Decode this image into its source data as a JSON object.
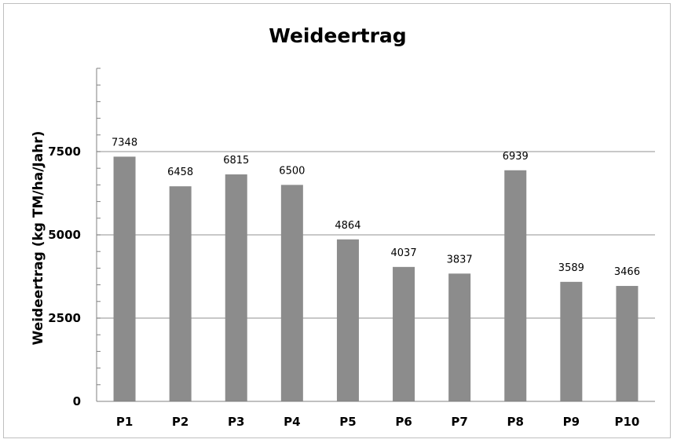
{
  "chart_data": {
    "type": "bar",
    "title": "Weideertrag",
    "xlabel": "",
    "ylabel": "Weideertrag  (kg TM/ha/Jahr)",
    "categories": [
      "P1",
      "P2",
      "P3",
      "P4",
      "P5",
      "P6",
      "P7",
      "P8",
      "P9",
      "P10"
    ],
    "values": [
      7348,
      6458,
      6815,
      6500,
      4864,
      4037,
      3837,
      6939,
      3589,
      3466
    ],
    "data_labels": [
      "7348",
      "6458",
      "6815",
      "6500",
      "4864",
      "4037",
      "3837",
      "6939",
      "3589",
      "3466"
    ],
    "ylim": [
      0,
      10000
    ],
    "yticks": [
      0,
      2500,
      5000,
      7500
    ],
    "ytick_labels": [
      "0",
      "2500",
      "5000",
      "7500"
    ],
    "grid": true,
    "legend": "none",
    "colors": {
      "bar": "#8c8c8c",
      "grid": "#a6a6a6",
      "axis": "#808080",
      "border": "#bfbfbf"
    }
  }
}
